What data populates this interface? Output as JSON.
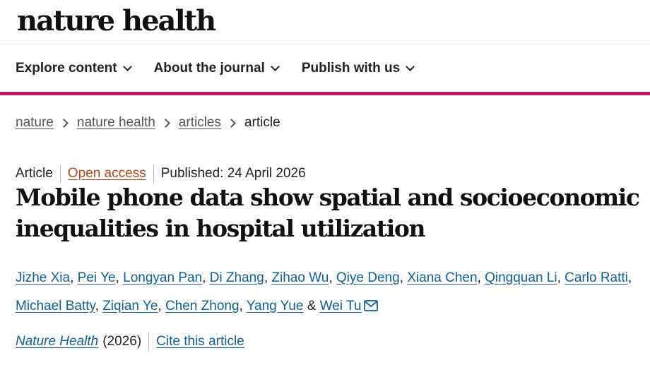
{
  "site": {
    "logo": "nature health"
  },
  "nav": {
    "items": [
      {
        "label": "Explore content",
        "icon": "chevron-down-icon"
      },
      {
        "label": "About the journal",
        "icon": "chevron-down-icon"
      },
      {
        "label": "Publish with us",
        "icon": "chevron-down-icon"
      }
    ]
  },
  "breadcrumb": [
    "nature",
    "nature health",
    "articles",
    "article"
  ],
  "article": {
    "type": "Article",
    "access": "Open access",
    "published": "Published: 24 April 2026",
    "title": "Mobile phone data show spatial and socioeconomic inequalities in hospital utilization",
    "authors": [
      "Jizhe Xia",
      "Pei Ye",
      "Longyan Pan",
      "Di Zhang",
      "Zihao Wu",
      "Qiye Deng",
      "Xiana Chen",
      "Qingquan Li",
      "Carlo Ratti",
      "Michael Batty",
      "Ziqian Ye",
      "Chen Zhong",
      "Yang Yue",
      "Wei Tu"
    ],
    "author_conjunction": "&",
    "journal": "Nature Health",
    "year": "(2026)",
    "cite_label": "Cite this article"
  },
  "colors": {
    "accent": "#c7176b",
    "link": "#0d5fa0",
    "open_access": "#b7471a"
  }
}
